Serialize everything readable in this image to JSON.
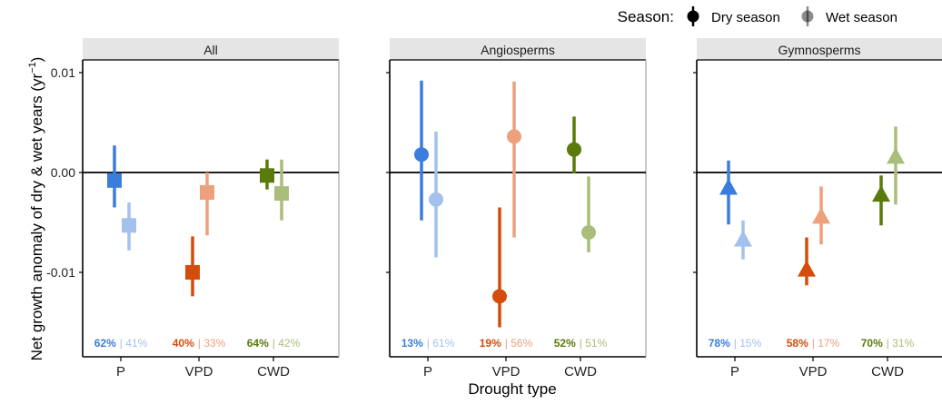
{
  "chart_data": {
    "type": "scatter",
    "ylabel_parts": [
      "Net growth anomaly of dry & wet years (yr",
      "−1",
      ")"
    ],
    "xlabel": "Drought type",
    "legend": {
      "title": "Season:",
      "entries": [
        "Dry season",
        "Wet season"
      ],
      "placement": "top-right"
    },
    "categories": [
      "P",
      "VPD",
      "CWD"
    ],
    "ylim": [
      -0.0183,
      0.0112
    ],
    "yticks": [
      {
        "value": 0.01,
        "label": "0.01"
      },
      {
        "value": 0.0,
        "label": "0.00"
      },
      {
        "value": -0.01,
        "label": "-0.01"
      }
    ],
    "colors": {
      "P": {
        "dry": "#3b7ddd",
        "wet": "#a4c0ed"
      },
      "VPD": {
        "dry": "#d44d0c",
        "wet": "#eca07c"
      },
      "CWD": {
        "dry": "#5a7a0a",
        "wet": "#aabd7a"
      },
      "strip_fill": "#e5e5e5",
      "separator": "#aaaaaa"
    },
    "panels": [
      {
        "title": "All",
        "marker": "square",
        "points": [
          {
            "category": "P",
            "season": "Dry season",
            "y": -0.0008,
            "low": -0.0035,
            "high": 0.0027
          },
          {
            "category": "P",
            "season": "Wet season",
            "y": -0.0053,
            "low": -0.0078,
            "high": -0.003
          },
          {
            "category": "VPD",
            "season": "Dry season",
            "y": -0.01,
            "low": -0.0124,
            "high": -0.0064
          },
          {
            "category": "VPD",
            "season": "Wet season",
            "y": -0.002,
            "low": -0.0063,
            "high": 0.0
          },
          {
            "category": "CWD",
            "season": "Dry season",
            "y": -0.0003,
            "low": -0.0017,
            "high": 0.0013
          },
          {
            "category": "CWD",
            "season": "Wet season",
            "y": -0.0021,
            "low": -0.0048,
            "high": 0.0013
          }
        ],
        "percent_labels": [
          {
            "category": "P",
            "dry": "62%",
            "wet": "| 41%"
          },
          {
            "category": "VPD",
            "dry": "40%",
            "wet": "| 33%"
          },
          {
            "category": "CWD",
            "dry": "64%",
            "wet": "| 42%"
          }
        ]
      },
      {
        "title": "Angiosperms",
        "marker": "circle",
        "points": [
          {
            "category": "P",
            "season": "Dry season",
            "y": 0.0018,
            "low": -0.0048,
            "high": 0.0092
          },
          {
            "category": "P",
            "season": "Wet season",
            "y": -0.0027,
            "low": -0.0085,
            "high": 0.0041
          },
          {
            "category": "VPD",
            "season": "Dry season",
            "y": -0.0124,
            "low": -0.0155,
            "high": -0.0035
          },
          {
            "category": "VPD",
            "season": "Wet season",
            "y": 0.0036,
            "low": -0.0065,
            "high": 0.0091
          },
          {
            "category": "CWD",
            "season": "Dry season",
            "y": 0.0023,
            "low": -0.0001,
            "high": 0.0056
          },
          {
            "category": "CWD",
            "season": "Wet season",
            "y": -0.006,
            "low": -0.008,
            "high": -0.0004
          }
        ],
        "percent_labels": [
          {
            "category": "P",
            "dry": "13%",
            "wet": "| 61%"
          },
          {
            "category": "VPD",
            "dry": "19%",
            "wet": "| 56%"
          },
          {
            "category": "CWD",
            "dry": "52%",
            "wet": "| 51%"
          }
        ]
      },
      {
        "title": "Gymnosperms",
        "marker": "triangle",
        "points": [
          {
            "category": "P",
            "season": "Dry season",
            "y": -0.0016,
            "low": -0.0052,
            "high": 0.0012
          },
          {
            "category": "P",
            "season": "Wet season",
            "y": -0.0068,
            "low": -0.0087,
            "high": -0.0048
          },
          {
            "category": "VPD",
            "season": "Dry season",
            "y": -0.0098,
            "low": -0.0113,
            "high": -0.0065
          },
          {
            "category": "VPD",
            "season": "Wet season",
            "y": -0.0045,
            "low": -0.0072,
            "high": -0.0014
          },
          {
            "category": "CWD",
            "season": "Dry season",
            "y": -0.0023,
            "low": -0.0053,
            "high": -0.0003
          },
          {
            "category": "CWD",
            "season": "Wet season",
            "y": 0.0015,
            "low": -0.0032,
            "high": 0.0046
          }
        ],
        "percent_labels": [
          {
            "category": "P",
            "dry": "78%",
            "wet": "| 15%"
          },
          {
            "category": "VPD",
            "dry": "58%",
            "wet": "| 17%"
          },
          {
            "category": "CWD",
            "dry": "70%",
            "wet": "| 31%"
          }
        ]
      }
    ]
  }
}
